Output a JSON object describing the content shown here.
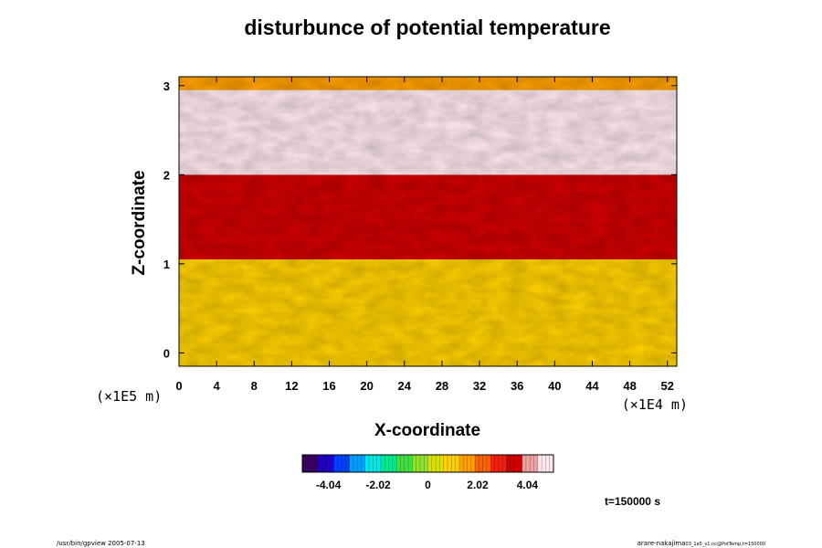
{
  "chart_data": {
    "type": "heatmap",
    "title": "disturbunce of potential temperature",
    "xlabel": "X-coordinate",
    "ylabel": "Z-coordinate",
    "x_unit": "(×1E4 m)",
    "y_unit": "(×1E5 m)",
    "xlim": [
      0,
      53
    ],
    "ylim": [
      -0.15,
      3.1
    ],
    "x_ticks": [
      0,
      4,
      8,
      12,
      16,
      20,
      24,
      28,
      32,
      36,
      40,
      44,
      48,
      52
    ],
    "y_ticks": [
      0,
      1,
      2,
      3
    ],
    "colorbar": {
      "range": [
        -5.1,
        5.1
      ],
      "ticks": [
        -4.04,
        -2.02,
        0,
        2.02,
        4.04
      ],
      "tick_labels": [
        "-4.04",
        "-2.02",
        "0",
        "2.02",
        "4.04"
      ],
      "colors": [
        "#3a0060",
        "#2000c8",
        "#0040ff",
        "#00a0ff",
        "#00e8e8",
        "#00e890",
        "#40e040",
        "#90e030",
        "#d8e000",
        "#ffd000",
        "#ffa000",
        "#ff6000",
        "#f02010",
        "#d00000",
        "#f0a0a0",
        "#ffe8ee"
      ]
    },
    "regions": [
      {
        "z_from": -0.15,
        "z_to": 1.05,
        "value": 0.9,
        "description": "lower layer"
      },
      {
        "z_from": 1.05,
        "z_to": 2.0,
        "value": 3.4,
        "description": "middle layer"
      },
      {
        "z_from": 2.0,
        "z_to": 2.95,
        "value": 5.5,
        "description": "upper layer"
      },
      {
        "z_from": 2.95,
        "z_to": 3.1,
        "value": 1.3,
        "description": "top layer"
      }
    ]
  },
  "time_label": "t=150000 s",
  "footer": {
    "left": "/usr/bin/gpview 2005-07-13",
    "right_main": "arare-nakajima",
    "right_sub": "03_1e5_v1.nc@PotTemp,t=150000"
  }
}
